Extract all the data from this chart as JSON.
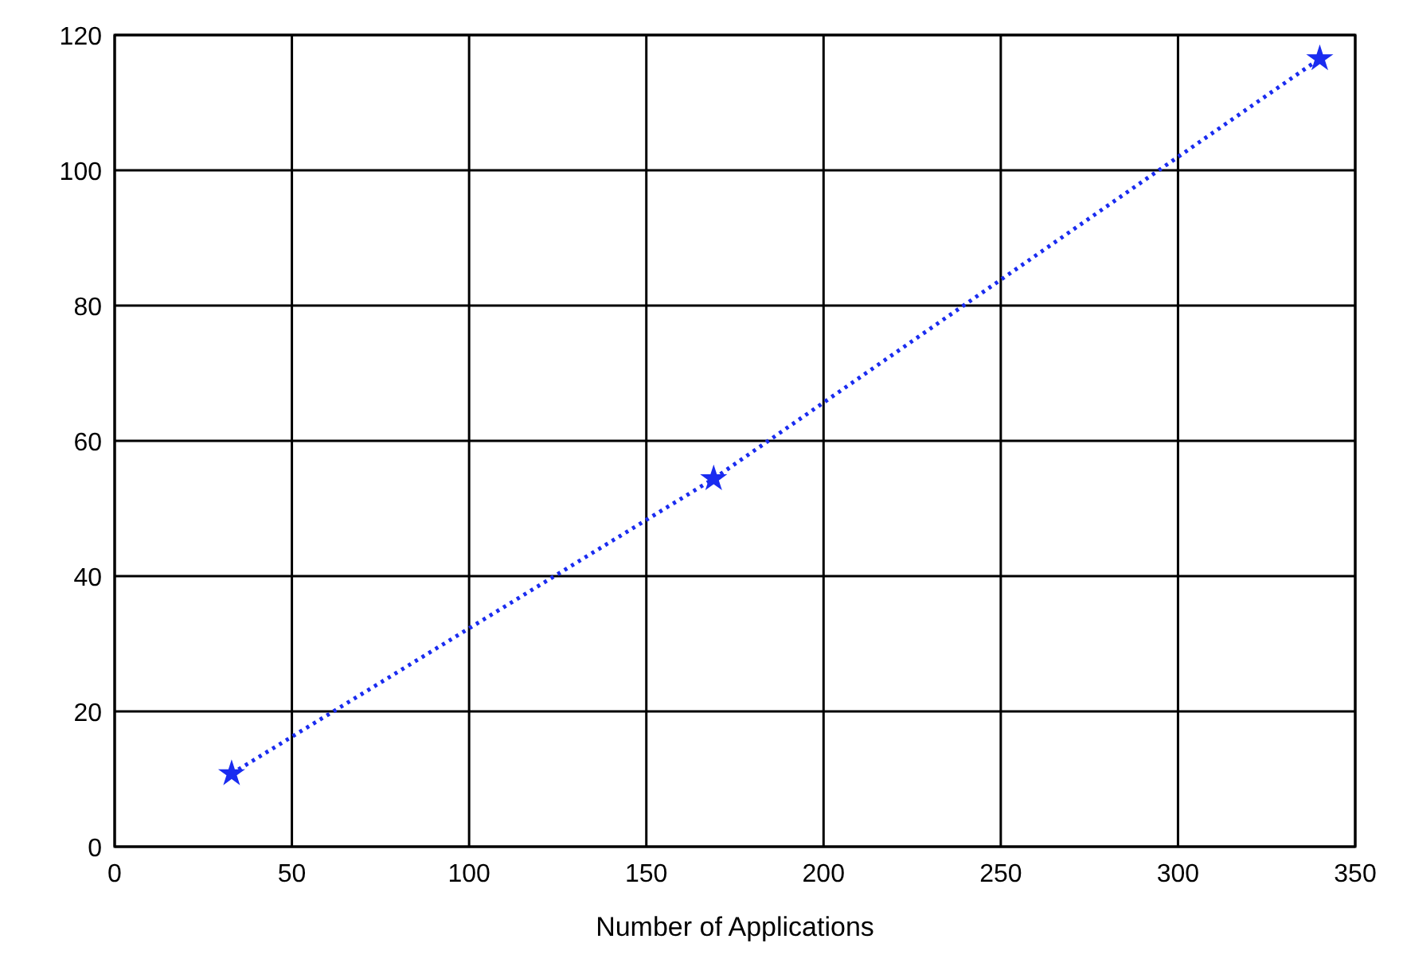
{
  "chart_data": {
    "type": "line",
    "xlabel": "Number of Applications",
    "x": [
      33,
      169,
      340
    ],
    "series": [
      {
        "color": "#1a2cf0",
        "values": [
          10.8,
          54.4,
          116.5
        ]
      }
    ],
    "xlim": [
      0,
      350
    ],
    "xticks": [
      0,
      50,
      100,
      150,
      200,
      250,
      300,
      350
    ],
    "ylim": [
      0,
      120
    ],
    "yticks": [
      0,
      20,
      40,
      60,
      80,
      100,
      120
    ],
    "grid": true,
    "marker": "star",
    "line_style": "dotted"
  }
}
